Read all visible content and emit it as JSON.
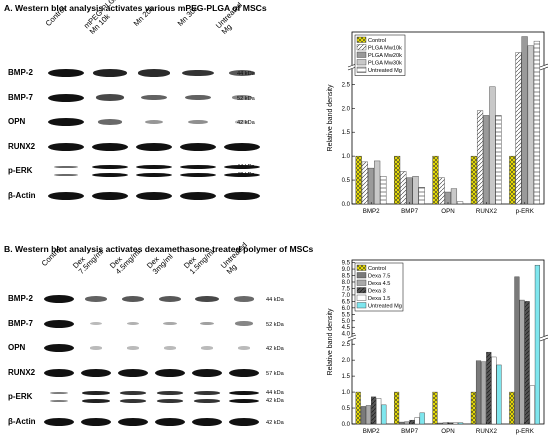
{
  "panels": [
    {
      "title": "A. Western blot analysis activates various  mPEG-PLGA  of MSCs",
      "lanes": [
        "Control",
        "mPEG-PLGA\nMn 10k",
        "Mn 20k",
        "Mn 30k",
        "Untreated\nMg"
      ],
      "rows": [
        {
          "label": "BMP-2",
          "kda": "44 kDa",
          "intensity": [
            1,
            0.9,
            0.85,
            0.8,
            0.6
          ]
        },
        {
          "label": "BMP-7",
          "kda": "52 kDa",
          "intensity": [
            1,
            0.7,
            0.55,
            0.55,
            0.35
          ]
        },
        {
          "label": "OPN",
          "kda": "42 kDa",
          "intensity": [
            1,
            0.5,
            0.25,
            0.3,
            0.05
          ]
        },
        {
          "label": "RUNX2",
          "kda": "57 kDa",
          "intensity": [
            1,
            1,
            1,
            1,
            1
          ]
        },
        {
          "label": "p-ERK",
          "kda": "44 kDa\n42 kDa",
          "intensity": [
            0.5,
            1,
            1,
            1,
            1
          ]
        },
        {
          "label": "β-Actin",
          "kda": "42 kDa",
          "intensity": [
            1,
            1,
            1,
            1,
            1
          ]
        }
      ]
    },
    {
      "title": "B. Western blot analysis activates dexamethasone treated polymer of MSCs",
      "lanes": [
        "Control",
        "Dex\n7.5mg/ml",
        "Dex\n4.5mg/ml",
        "Dex\n3mg/ml",
        "Dex\n1.5mg/ml",
        "Untreated\nMg"
      ],
      "rows": [
        {
          "label": "BMP-2",
          "kda": "44 kDa",
          "intensity": [
            1,
            0.55,
            0.6,
            0.6,
            0.7,
            0.5
          ]
        },
        {
          "label": "BMP-7",
          "kda": "52 kDa",
          "intensity": [
            1,
            0.05,
            0.1,
            0.15,
            0.2,
            0.35
          ]
        },
        {
          "label": "OPN",
          "kda": "42 kDa",
          "intensity": [
            1,
            0.05,
            0.05,
            0.05,
            0.05,
            0.05
          ]
        },
        {
          "label": "RUNX2",
          "kda": "57 kDa",
          "intensity": [
            1,
            1,
            1,
            1,
            1,
            1
          ]
        },
        {
          "label": "p-ERK",
          "kda": "44 kDa\n42 kDa",
          "intensity": [
            0.4,
            0.9,
            0.8,
            0.8,
            0.8,
            1
          ]
        },
        {
          "label": "β-Actin",
          "kda": "42 kDa",
          "intensity": [
            1,
            1,
            1,
            1,
            1,
            1
          ]
        }
      ]
    }
  ],
  "chart_data": [
    {
      "type": "bar",
      "ylabel": "Relative band density",
      "categories": [
        "BMP2",
        "BMP7",
        "OPN",
        "RUNX2",
        "p-ERK"
      ],
      "axis_break": true,
      "yticks": [
        "0.0",
        "0.5",
        "1.0",
        "1.5",
        "2.0",
        "2.5"
      ],
      "ylim_lower": [
        0,
        2.8
      ],
      "legend_position": "top-left",
      "series": [
        {
          "name": "Control",
          "color": "#f2e600",
          "pattern": "cross",
          "values": [
            1.0,
            1.0,
            1.0,
            1.0,
            1.0
          ]
        },
        {
          "name": "PLGA Mw10k",
          "color": "#ffffff",
          "pattern": "diag",
          "values": [
            0.88,
            0.68,
            0.55,
            1.95,
            9.5
          ]
        },
        {
          "name": "PLGA Mw20k",
          "color": "#9a9a9a",
          "pattern": "none",
          "values": [
            0.75,
            0.55,
            0.25,
            1.85,
            10.2
          ]
        },
        {
          "name": "PLGA Mw30k",
          "color": "#c8c8c8",
          "pattern": "none",
          "values": [
            0.9,
            0.58,
            0.32,
            2.45,
            9.8
          ]
        },
        {
          "name": "Untreated Mg",
          "color": "#ffffff",
          "pattern": "hline",
          "values": [
            0.58,
            0.35,
            0.05,
            1.85,
            10.0
          ]
        }
      ]
    },
    {
      "type": "bar",
      "ylabel": "Relative band density",
      "categories": [
        "BMP2",
        "BMP7",
        "OPN",
        "RUNX2",
        "p-ERK"
      ],
      "axis_break": true,
      "yticks": [
        "0.0",
        "0.5",
        "1.0",
        "1.5",
        "2.0",
        "2.5",
        "4.0",
        "4.5",
        "5.0",
        "5.5",
        "6.0",
        "6.5",
        "7.0",
        "7.5",
        "8.0",
        "8.5",
        "9.0",
        "9.5"
      ],
      "legend_position": "top-left",
      "series": [
        {
          "name": "Control",
          "color": "#f2e600",
          "pattern": "cross",
          "values": [
            1.0,
            1.0,
            1.0,
            1.0,
            1.0
          ]
        },
        {
          "name": "Dexa 7.5",
          "color": "#7a7a7a",
          "pattern": "none",
          "values": [
            0.55,
            0.06,
            0.03,
            1.98,
            8.4
          ]
        },
        {
          "name": "Dexa 4.5",
          "color": "#aaaaaa",
          "pattern": "none",
          "values": [
            0.58,
            0.07,
            0.04,
            1.95,
            6.6
          ]
        },
        {
          "name": "Dexa 3",
          "color": "#555555",
          "pattern": "diag",
          "values": [
            0.85,
            0.12,
            0.04,
            2.25,
            6.5
          ]
        },
        {
          "name": "Dexa 1.5",
          "color": "#ffffff",
          "pattern": "none",
          "values": [
            0.8,
            0.2,
            0.04,
            2.1,
            1.2
          ]
        },
        {
          "name": "Untreated Mg",
          "color": "#7fe6ee",
          "pattern": "none",
          "values": [
            0.6,
            0.35,
            0.04,
            1.85,
            9.3
          ]
        }
      ]
    }
  ]
}
